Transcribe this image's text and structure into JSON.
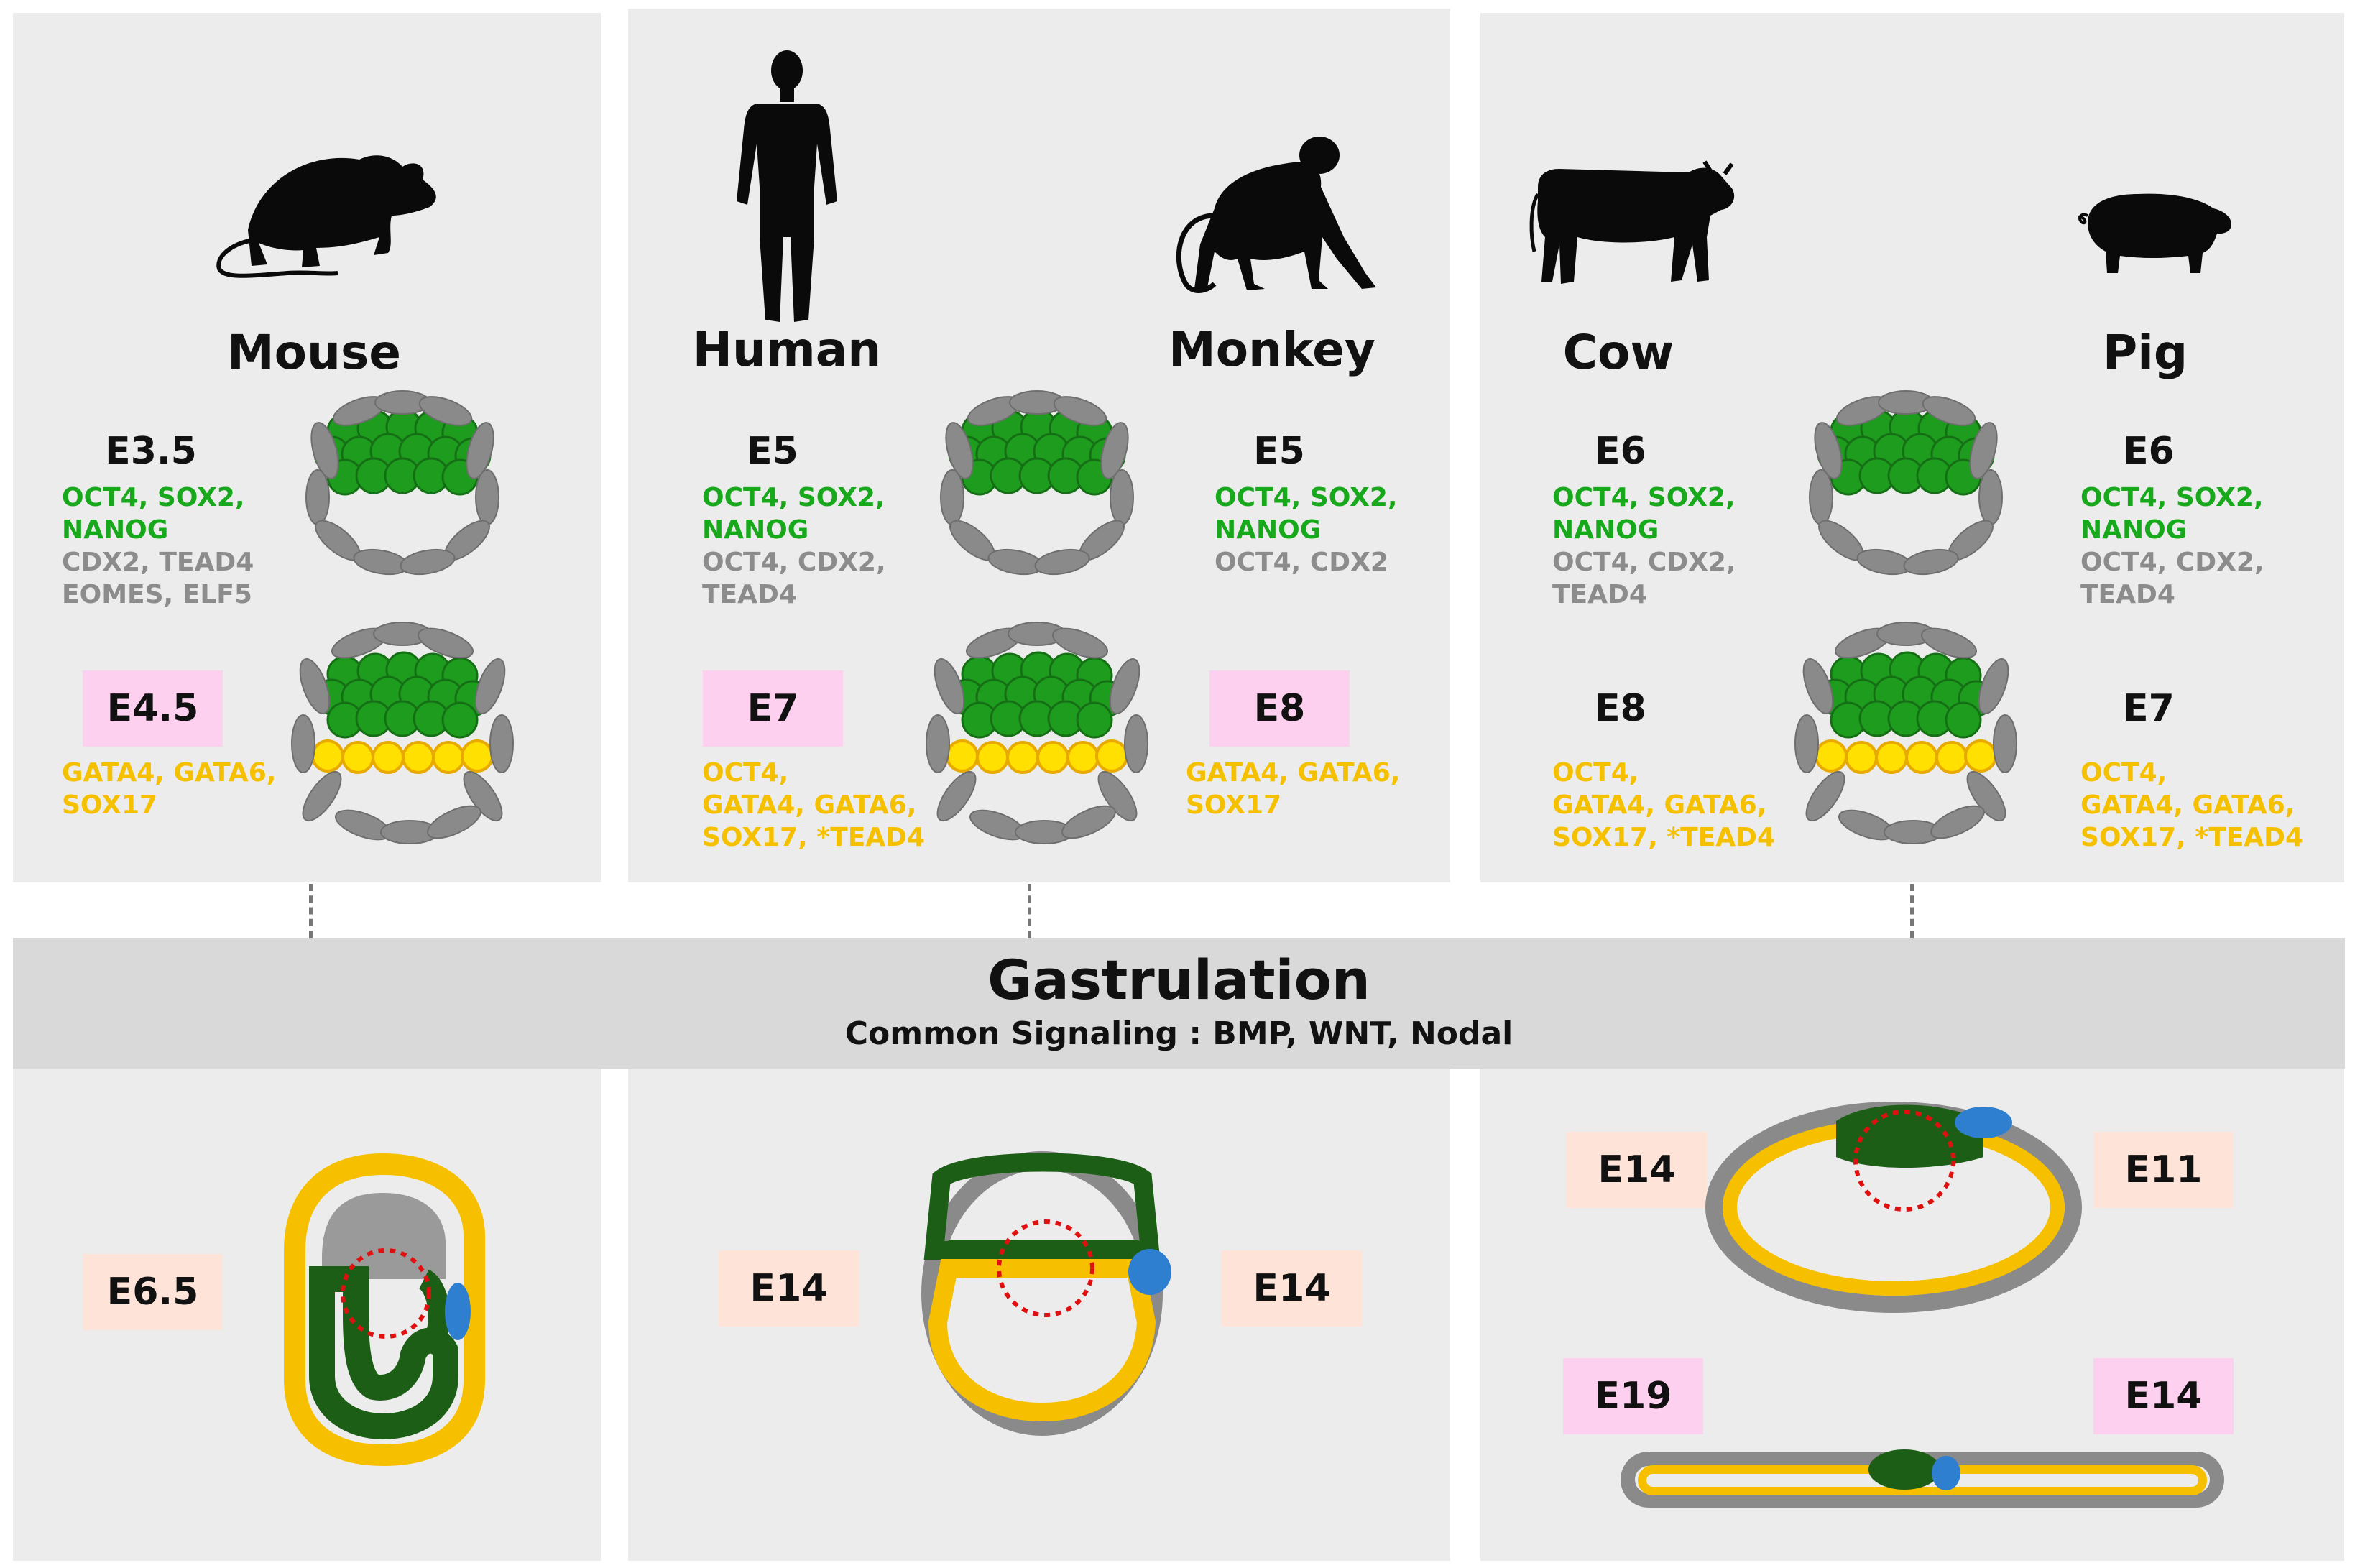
{
  "colors": {
    "panel": "#ececec",
    "band": "#d9d9d9",
    "pluripotency": "#17a81b",
    "trophectoderm": "#8c8c8c",
    "primitive_endoderm": "#f5c000",
    "pink_box": "#fcd0ee",
    "peach_box": "#fde3d8",
    "epiblast_cell": "#1e9c1e",
    "hypoblast_cell": "#ffe000",
    "dark_epiblast": "#1d5e16",
    "primitive_streak": "#2e7fd0",
    "trophoblast_cell": "#8a8a8a"
  },
  "icons": [
    "mouse-silhouette-icon",
    "human-silhouette-icon",
    "monkey-silhouette-icon",
    "cow-silhouette-icon",
    "pig-silhouette-icon"
  ],
  "species": {
    "mouse": {
      "name": "Mouse",
      "stage1": "E3.5",
      "stage1_genes_green": [
        "OCT4, SOX2,",
        "NANOG"
      ],
      "stage1_genes_grey": [
        "CDX2, TEAD4",
        "EOMES, ELF5"
      ],
      "stage2": "E4.5",
      "stage2_genes_yellow": [
        "GATA4, GATA6,",
        "SOX17"
      ],
      "gastrulation_stage": "E6.5"
    },
    "human": {
      "name": "Human",
      "stage1": "E5",
      "stage1_genes_green": [
        "OCT4, SOX2,",
        "NANOG"
      ],
      "stage1_genes_grey": [
        "OCT4, CDX2,",
        "TEAD4"
      ],
      "stage2": "E7",
      "stage2_genes_yellow": [
        "OCT4,",
        "GATA4, GATA6,",
        "SOX17, *TEAD4"
      ],
      "gastrulation_stage": "E14"
    },
    "monkey": {
      "name": "Monkey",
      "stage1": "E5",
      "stage1_genes_green": [
        "OCT4, SOX2,",
        "NANOG"
      ],
      "stage1_genes_grey": [
        "OCT4, CDX2"
      ],
      "stage2": "E8",
      "stage2_genes_yellow": [
        "GATA4, GATA6,",
        "SOX17"
      ],
      "gastrulation_stage": "E14"
    },
    "cow": {
      "name": "Cow",
      "stage1": "E6",
      "stage1_genes_green": [
        "OCT4, SOX2,",
        "NANOG"
      ],
      "stage1_genes_grey": [
        "OCT4, CDX2,",
        "TEAD4"
      ],
      "stage2": "E8",
      "stage2_genes_yellow": [
        "OCT4,",
        "GATA4, GATA6,",
        "SOX17, *TEAD4"
      ],
      "gastrulation_stage_a": "E14",
      "gastrulation_stage_b": "E19"
    },
    "pig": {
      "name": "Pig",
      "stage1": "E6",
      "stage1_genes_green": [
        "OCT4, SOX2,",
        "NANOG"
      ],
      "stage1_genes_grey": [
        "OCT4, CDX2,",
        "TEAD4"
      ],
      "stage2": "E7",
      "stage2_genes_yellow": [
        "OCT4,",
        "GATA4, GATA6,",
        "SOX17, *TEAD4"
      ],
      "gastrulation_stage_a": "E11",
      "gastrulation_stage_b": "E14"
    }
  },
  "gastrulation": {
    "title": "Gastrulation",
    "subtitle": "Common Signaling :  BMP, WNT,  Nodal"
  }
}
